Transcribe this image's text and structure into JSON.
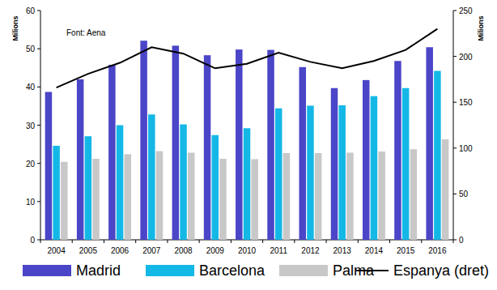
{
  "chart_data": {
    "type": "bar",
    "annotations": [
      "Font: Aena"
    ],
    "y_label": "Milions",
    "y2_label": "Milions",
    "categories": [
      "2004",
      "2005",
      "2006",
      "2007",
      "2008",
      "2009",
      "2010",
      "2011",
      "2012",
      "2013",
      "2014",
      "2015",
      "2016"
    ],
    "series": [
      {
        "name": "Madrid",
        "color": "#4b45c8",
        "values": [
          38.7,
          42.0,
          45.8,
          52.1,
          50.8,
          48.3,
          49.8,
          49.7,
          45.2,
          39.7,
          41.8,
          46.8,
          50.4
        ]
      },
      {
        "name": "Barcelona",
        "color": "#14b8e6",
        "values": [
          24.6,
          27.1,
          30.0,
          32.8,
          30.2,
          27.4,
          29.2,
          34.4,
          35.1,
          35.2,
          37.6,
          39.7,
          44.2
        ]
      },
      {
        "name": "Palma",
        "color": "#c8c8c8",
        "values": [
          20.4,
          21.2,
          22.4,
          23.2,
          22.8,
          21.2,
          21.1,
          22.7,
          22.7,
          22.8,
          23.1,
          23.7,
          26.3
        ]
      },
      {
        "name": "Espanya (dret)",
        "type": "line",
        "line_style": "solid",
        "color": "#000000",
        "axis": "y2",
        "values": [
          166,
          181,
          193,
          210,
          203,
          187,
          192,
          204,
          194,
          187,
          195,
          207,
          230
        ]
      }
    ],
    "ylim": [
      0,
      60
    ],
    "yticks": [
      0,
      10,
      20,
      30,
      40,
      50,
      60
    ],
    "y2lim": [
      0,
      250
    ],
    "y2ticks": [
      0,
      50,
      100,
      150,
      200,
      250
    ],
    "grid": false,
    "legend": "bottom"
  }
}
